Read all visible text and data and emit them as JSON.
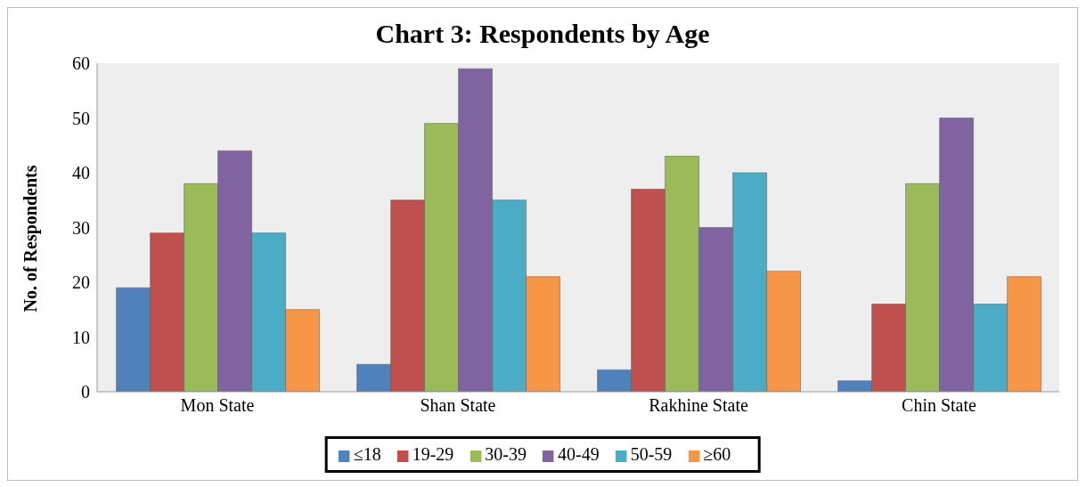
{
  "chart_data": {
    "type": "bar",
    "title": "Chart 3: Respondents by Age",
    "ylabel": "No. of Respondents",
    "categories": [
      "Mon State",
      "Shan State",
      "Rakhine State",
      "Chin State"
    ],
    "series": [
      {
        "name": "≤18",
        "color": "#4f81bd",
        "values": [
          19,
          5,
          4,
          2
        ]
      },
      {
        "name": "19-29",
        "color": "#c0504d",
        "values": [
          29,
          35,
          37,
          16
        ]
      },
      {
        "name": "30-39",
        "color": "#9bbb59",
        "values": [
          38,
          49,
          43,
          38
        ]
      },
      {
        "name": "40-49",
        "color": "#8064a2",
        "values": [
          44,
          59,
          30,
          50
        ]
      },
      {
        "name": "50-59",
        "color": "#4bacc6",
        "values": [
          29,
          35,
          40,
          16
        ]
      },
      {
        "name": "≥60",
        "color": "#f79646",
        "values": [
          15,
          21,
          22,
          21
        ]
      }
    ],
    "ylim": [
      0,
      60
    ],
    "yticks": [
      0,
      10,
      20,
      30,
      40,
      50,
      60
    ],
    "grid": false,
    "legend": "bottom"
  }
}
